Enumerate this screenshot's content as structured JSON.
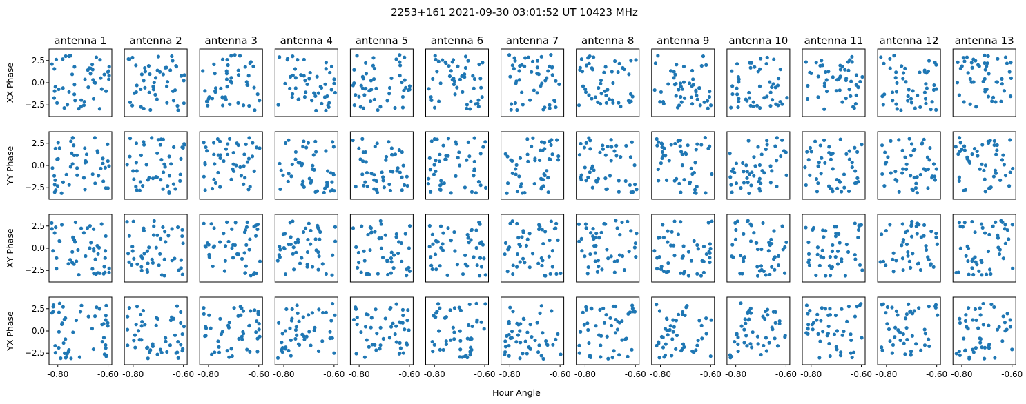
{
  "figure": {
    "title": "2253+161  2021-09-30 03:01:52 UT  10423 MHz",
    "xlabel": "Hour Angle",
    "rows": [
      "XX Phase",
      "YY Phase",
      "XY Phase",
      "YX Phase"
    ],
    "columns": [
      "antenna 1",
      "antenna 2",
      "antenna 3",
      "antenna 4",
      "antenna 5",
      "antenna 6",
      "antenna 7",
      "antenna 8",
      "antenna 9",
      "antenna 10",
      "antenna 11",
      "antenna 12",
      "antenna 13"
    ],
    "x_tick_labels": [
      "-0.80",
      "-0.60"
    ],
    "y_tick_labels": [
      "2.5",
      "0.0",
      "−2.5"
    ],
    "colors": {
      "marker": "#1f77b4",
      "axes": "#000000",
      "background": "#ffffff"
    }
  },
  "chart_data": {
    "type": "scatter",
    "title": "2253+161  2021-09-30 03:01:52 UT  10423 MHz",
    "xlabel": "Hour Angle",
    "ylabel_per_row": [
      "XX Phase",
      "YY Phase",
      "XY Phase",
      "YX Phase"
    ],
    "panel_titles": [
      "antenna 1",
      "antenna 2",
      "antenna 3",
      "antenna 4",
      "antenna 5",
      "antenna 6",
      "antenna 7",
      "antenna 8",
      "antenna 9",
      "antenna 10",
      "antenna 11",
      "antenna 12",
      "antenna 13"
    ],
    "xlim": [
      -0.835,
      -0.585
    ],
    "ylim": [
      -3.8,
      3.8
    ],
    "x_ticks": [
      -0.8,
      -0.6
    ],
    "y_ticks": [
      2.5,
      0.0,
      -2.5
    ],
    "points_per_panel": 50,
    "x_range_of_points": [
      -0.825,
      -0.595
    ],
    "y_range_of_points": [
      -3.14,
      3.14
    ],
    "marker_color": "#1f77b4",
    "grid": false,
    "legend": "none",
    "note": "Per-point phase values are too dense to read individually; each panel shows ~50 points spread uniformly over [-pi, pi] across the hour-angle range."
  }
}
